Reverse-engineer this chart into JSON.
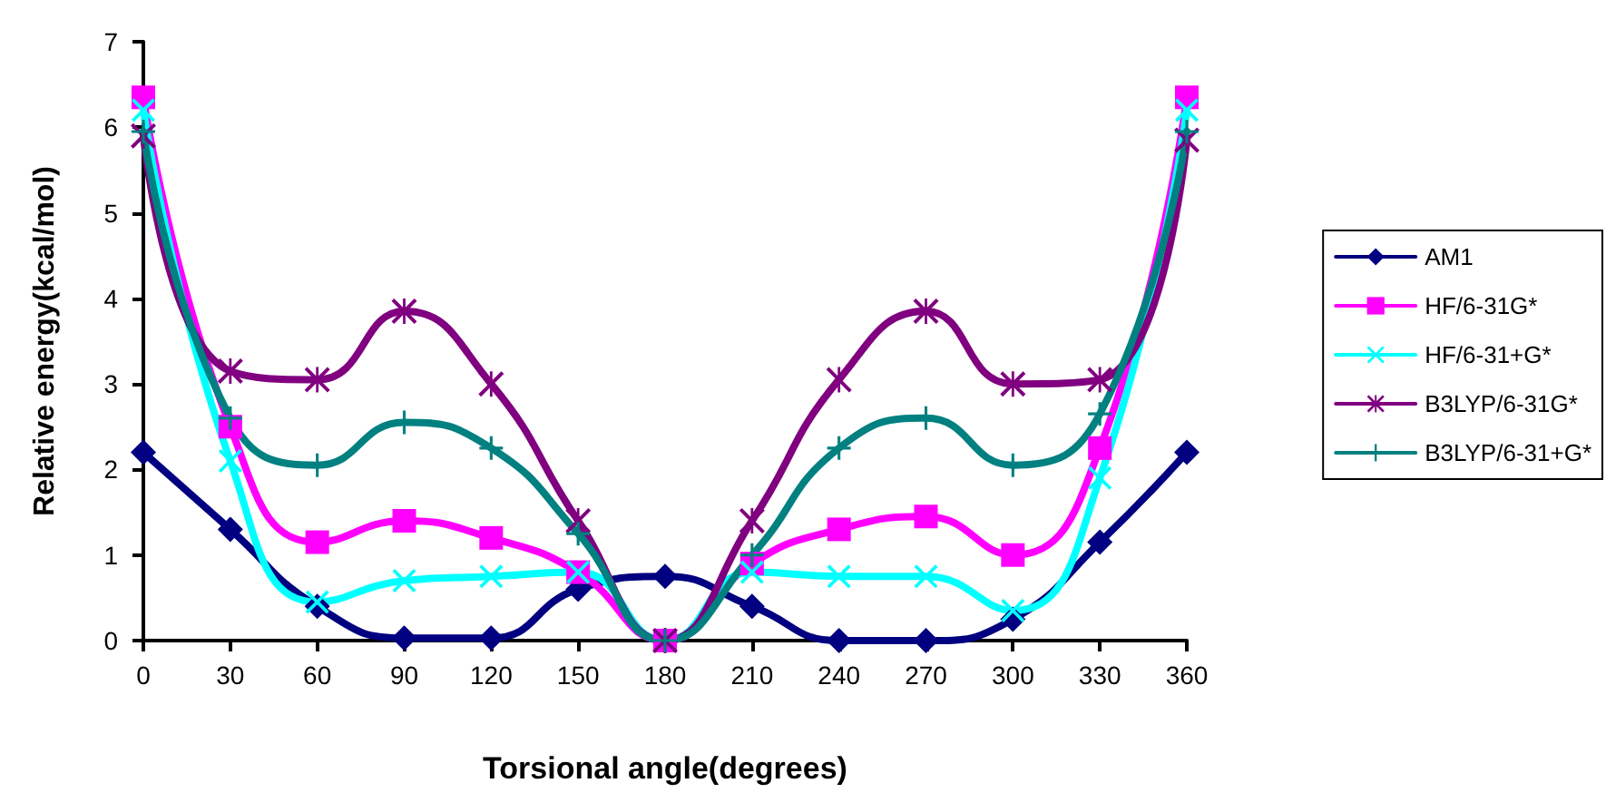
{
  "chart_data": {
    "type": "line",
    "xlabel": "Torsional angle(degrees)",
    "ylabel": "Relative energy(kcal/mol)",
    "x": [
      0,
      30,
      60,
      90,
      120,
      150,
      180,
      210,
      240,
      270,
      300,
      330,
      360
    ],
    "xlim": [
      0,
      360
    ],
    "xticks": [
      0,
      30,
      60,
      90,
      120,
      150,
      180,
      210,
      240,
      270,
      300,
      330,
      360
    ],
    "ylim": [
      0,
      7
    ],
    "yticks": [
      0,
      1,
      2,
      3,
      4,
      5,
      6,
      7
    ],
    "grid": false,
    "legend": "right",
    "line_style": "solid",
    "series": [
      {
        "name": "AM1",
        "color": "#000080",
        "marker": "diamond",
        "values": [
          2.2,
          1.3,
          0.4,
          0.03,
          0.03,
          0.6,
          0.75,
          0.4,
          0,
          0,
          0.25,
          1.15,
          2.2
        ]
      },
      {
        "name": "HF/6-31G*",
        "color": "#ff00ff",
        "marker": "square",
        "values": [
          6.35,
          2.5,
          1.15,
          1.4,
          1.2,
          0.8,
          0,
          0.9,
          1.3,
          1.45,
          1.0,
          2.25,
          6.35
        ]
      },
      {
        "name": "HF/6-31+G*",
        "color": "#00ffff",
        "marker": "cross",
        "values": [
          6.2,
          2.1,
          0.45,
          0.7,
          0.75,
          0.8,
          0,
          0.8,
          0.75,
          0.75,
          0.35,
          1.9,
          6.2
        ]
      },
      {
        "name": "B3LYP/6-31G*",
        "color": "#800080",
        "marker": "star",
        "values": [
          5.9,
          3.15,
          3.05,
          3.85,
          3.0,
          1.4,
          0,
          1.4,
          3.05,
          3.85,
          3.0,
          3.05,
          5.85
        ]
      },
      {
        "name": "B3LYP/6-31+G*",
        "color": "#008080",
        "marker": "plus",
        "values": [
          5.95,
          2.6,
          2.05,
          2.55,
          2.25,
          1.25,
          0,
          1.0,
          2.25,
          2.6,
          2.05,
          2.65,
          5.95
        ]
      }
    ]
  }
}
